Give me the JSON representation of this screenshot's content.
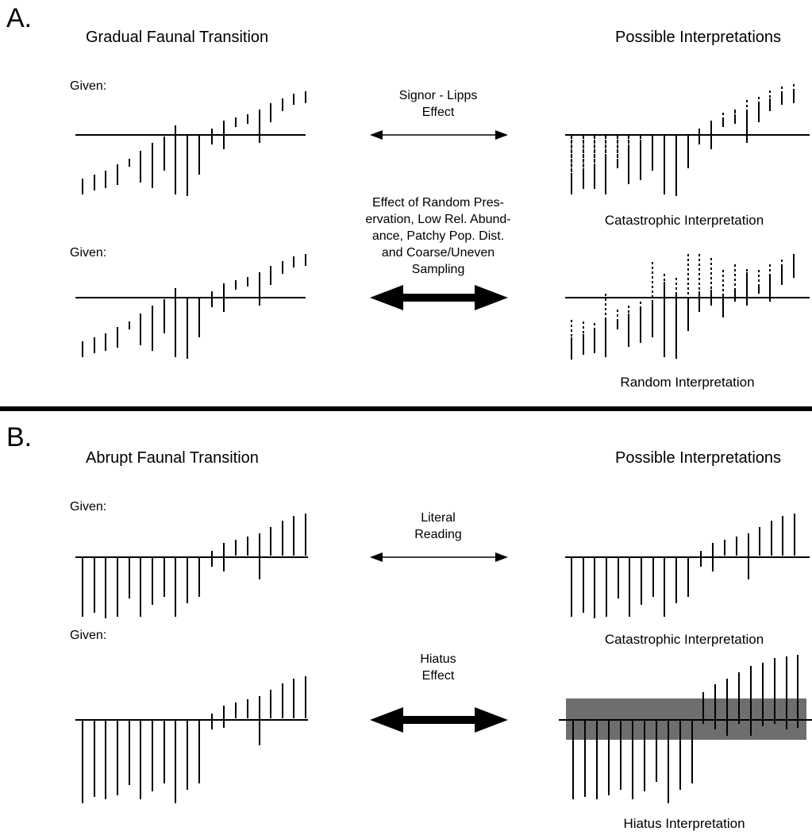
{
  "panel_a": {
    "letter": "A.",
    "left_heading": "Gradual Faunal Transition",
    "right_heading": "Possible Interpretations",
    "given_1": "Given:",
    "given_2": "Given:",
    "arrow_1_label": "Signor - Lipps\nEffect",
    "arrow_2_label": "Effect of Random Pres-\nervation, Low Rel. Abund-\nance, Patchy Pop. Dist.\nand Coarse/Uneven\nSampling",
    "interp_1": "Catastrophic Interpretation",
    "interp_2": "Random Interpretation"
  },
  "panel_b": {
    "letter": "B.",
    "left_heading": "Abrupt Faunal Transition",
    "right_heading": "Possible Interpretations",
    "given_1": "Given:",
    "given_2": "Given:",
    "arrow_1_label": "Literal\nReading",
    "arrow_2_label": "Hiatus\nEffect",
    "interp_1": "Catastrophic Interpretation",
    "interp_2": "Hiatus Interpretation"
  },
  "colors": {
    "ink": "#000000",
    "hiatus_box": "#555555",
    "background": "#ffffff"
  }
}
